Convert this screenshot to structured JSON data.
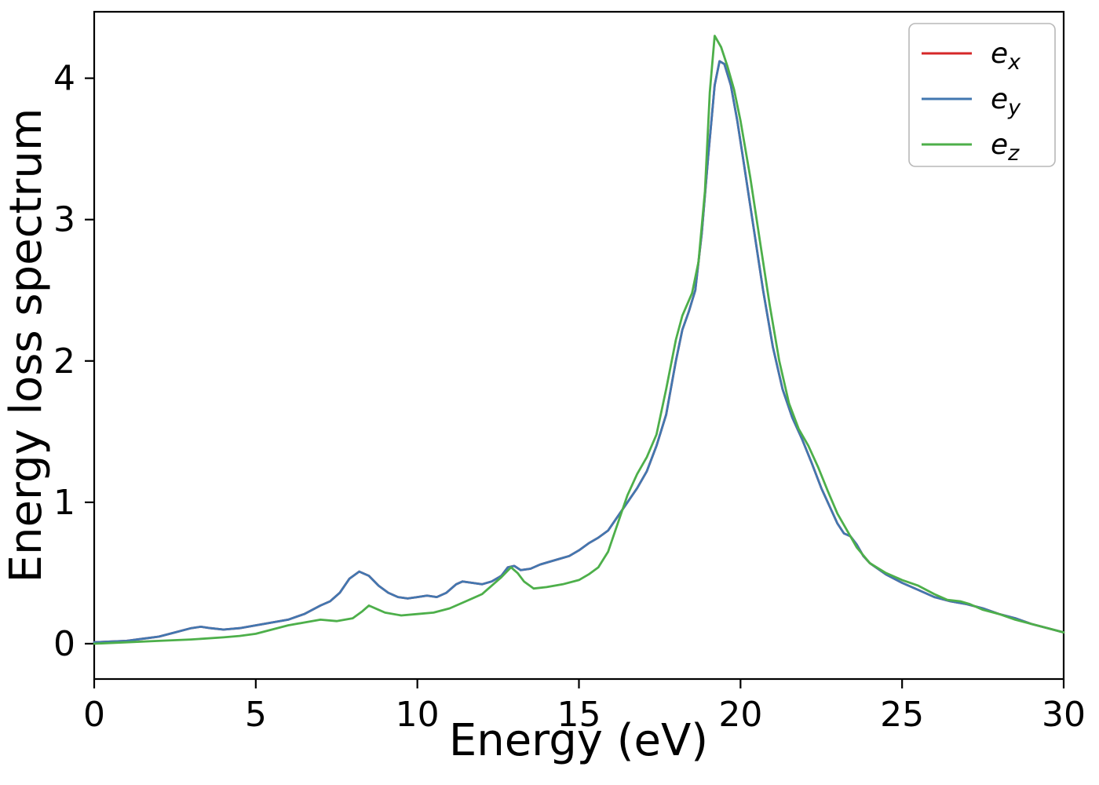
{
  "chart_data": {
    "type": "line",
    "title": "",
    "xlabel": "Energy (eV)",
    "ylabel": "Energy loss spectrum",
    "xlim": [
      0,
      30
    ],
    "ylim": [
      -0.25,
      4.47
    ],
    "xticks": [
      0,
      5,
      10,
      15,
      20,
      25,
      30
    ],
    "yticks": [
      0,
      1,
      2,
      3,
      4
    ],
    "grid": false,
    "legend_position": "upper right",
    "legend_border_color": "#b8b8b8",
    "background_color": "#ffffff",
    "axis_color": "#000000",
    "series": [
      {
        "name_base": "e",
        "name_sub": "x",
        "color": "#d62728",
        "note": "hidden beneath e_y (identical values)",
        "points": [
          [
            0,
            0.01
          ],
          [
            0.5,
            0.015
          ],
          [
            1,
            0.02
          ],
          [
            1.5,
            0.035
          ],
          [
            2,
            0.05
          ],
          [
            2.5,
            0.08
          ],
          [
            3,
            0.11
          ],
          [
            3.3,
            0.12
          ],
          [
            3.6,
            0.11
          ],
          [
            4,
            0.1
          ],
          [
            4.5,
            0.11
          ],
          [
            5,
            0.13
          ],
          [
            5.5,
            0.15
          ],
          [
            6,
            0.17
          ],
          [
            6.5,
            0.21
          ],
          [
            7,
            0.27
          ],
          [
            7.3,
            0.3
          ],
          [
            7.6,
            0.36
          ],
          [
            7.9,
            0.46
          ],
          [
            8.2,
            0.51
          ],
          [
            8.5,
            0.48
          ],
          [
            8.8,
            0.41
          ],
          [
            9.1,
            0.36
          ],
          [
            9.4,
            0.33
          ],
          [
            9.7,
            0.32
          ],
          [
            10,
            0.33
          ],
          [
            10.3,
            0.34
          ],
          [
            10.6,
            0.33
          ],
          [
            10.9,
            0.36
          ],
          [
            11.2,
            0.42
          ],
          [
            11.4,
            0.44
          ],
          [
            11.7,
            0.43
          ],
          [
            12,
            0.42
          ],
          [
            12.3,
            0.44
          ],
          [
            12.6,
            0.48
          ],
          [
            12.8,
            0.54
          ],
          [
            13,
            0.55
          ],
          [
            13.2,
            0.52
          ],
          [
            13.5,
            0.53
          ],
          [
            13.8,
            0.56
          ],
          [
            14.1,
            0.58
          ],
          [
            14.4,
            0.6
          ],
          [
            14.7,
            0.62
          ],
          [
            15,
            0.66
          ],
          [
            15.3,
            0.71
          ],
          [
            15.6,
            0.75
          ],
          [
            15.9,
            0.8
          ],
          [
            16.2,
            0.9
          ],
          [
            16.5,
            1.0
          ],
          [
            16.8,
            1.1
          ],
          [
            17.1,
            1.22
          ],
          [
            17.4,
            1.4
          ],
          [
            17.7,
            1.62
          ],
          [
            18,
            2.0
          ],
          [
            18.2,
            2.22
          ],
          [
            18.4,
            2.35
          ],
          [
            18.6,
            2.5
          ],
          [
            18.8,
            2.9
          ],
          [
            19,
            3.45
          ],
          [
            19.2,
            3.95
          ],
          [
            19.35,
            4.12
          ],
          [
            19.5,
            4.1
          ],
          [
            19.7,
            3.95
          ],
          [
            19.9,
            3.7
          ],
          [
            20.1,
            3.4
          ],
          [
            20.4,
            2.95
          ],
          [
            20.7,
            2.5
          ],
          [
            21,
            2.1
          ],
          [
            21.3,
            1.8
          ],
          [
            21.6,
            1.6
          ],
          [
            21.9,
            1.45
          ],
          [
            22.2,
            1.28
          ],
          [
            22.5,
            1.1
          ],
          [
            22.8,
            0.95
          ],
          [
            23,
            0.85
          ],
          [
            23.2,
            0.78
          ],
          [
            23.4,
            0.76
          ],
          [
            23.6,
            0.7
          ],
          [
            23.8,
            0.62
          ],
          [
            24,
            0.57
          ],
          [
            24.5,
            0.49
          ],
          [
            25,
            0.43
          ],
          [
            25.5,
            0.38
          ],
          [
            26,
            0.33
          ],
          [
            26.5,
            0.3
          ],
          [
            27,
            0.28
          ],
          [
            27.5,
            0.25
          ],
          [
            28,
            0.21
          ],
          [
            28.5,
            0.18
          ],
          [
            29,
            0.14
          ],
          [
            29.5,
            0.11
          ],
          [
            30,
            0.08
          ]
        ]
      },
      {
        "name_base": "e",
        "name_sub": "y",
        "color": "#4277b0",
        "points": [
          [
            0,
            0.01
          ],
          [
            0.5,
            0.015
          ],
          [
            1,
            0.02
          ],
          [
            1.5,
            0.035
          ],
          [
            2,
            0.05
          ],
          [
            2.5,
            0.08
          ],
          [
            3,
            0.11
          ],
          [
            3.3,
            0.12
          ],
          [
            3.6,
            0.11
          ],
          [
            4,
            0.1
          ],
          [
            4.5,
            0.11
          ],
          [
            5,
            0.13
          ],
          [
            5.5,
            0.15
          ],
          [
            6,
            0.17
          ],
          [
            6.5,
            0.21
          ],
          [
            7,
            0.27
          ],
          [
            7.3,
            0.3
          ],
          [
            7.6,
            0.36
          ],
          [
            7.9,
            0.46
          ],
          [
            8.2,
            0.51
          ],
          [
            8.5,
            0.48
          ],
          [
            8.8,
            0.41
          ],
          [
            9.1,
            0.36
          ],
          [
            9.4,
            0.33
          ],
          [
            9.7,
            0.32
          ],
          [
            10,
            0.33
          ],
          [
            10.3,
            0.34
          ],
          [
            10.6,
            0.33
          ],
          [
            10.9,
            0.36
          ],
          [
            11.2,
            0.42
          ],
          [
            11.4,
            0.44
          ],
          [
            11.7,
            0.43
          ],
          [
            12,
            0.42
          ],
          [
            12.3,
            0.44
          ],
          [
            12.6,
            0.48
          ],
          [
            12.8,
            0.54
          ],
          [
            13,
            0.55
          ],
          [
            13.2,
            0.52
          ],
          [
            13.5,
            0.53
          ],
          [
            13.8,
            0.56
          ],
          [
            14.1,
            0.58
          ],
          [
            14.4,
            0.6
          ],
          [
            14.7,
            0.62
          ],
          [
            15,
            0.66
          ],
          [
            15.3,
            0.71
          ],
          [
            15.6,
            0.75
          ],
          [
            15.9,
            0.8
          ],
          [
            16.2,
            0.9
          ],
          [
            16.5,
            1.0
          ],
          [
            16.8,
            1.1
          ],
          [
            17.1,
            1.22
          ],
          [
            17.4,
            1.4
          ],
          [
            17.7,
            1.62
          ],
          [
            18,
            2.0
          ],
          [
            18.2,
            2.22
          ],
          [
            18.4,
            2.35
          ],
          [
            18.6,
            2.5
          ],
          [
            18.8,
            2.9
          ],
          [
            19,
            3.45
          ],
          [
            19.2,
            3.95
          ],
          [
            19.35,
            4.12
          ],
          [
            19.5,
            4.1
          ],
          [
            19.7,
            3.95
          ],
          [
            19.9,
            3.7
          ],
          [
            20.1,
            3.4
          ],
          [
            20.4,
            2.95
          ],
          [
            20.7,
            2.5
          ],
          [
            21,
            2.1
          ],
          [
            21.3,
            1.8
          ],
          [
            21.6,
            1.6
          ],
          [
            21.9,
            1.45
          ],
          [
            22.2,
            1.28
          ],
          [
            22.5,
            1.1
          ],
          [
            22.8,
            0.95
          ],
          [
            23,
            0.85
          ],
          [
            23.2,
            0.78
          ],
          [
            23.4,
            0.76
          ],
          [
            23.6,
            0.7
          ],
          [
            23.8,
            0.62
          ],
          [
            24,
            0.57
          ],
          [
            24.5,
            0.49
          ],
          [
            25,
            0.43
          ],
          [
            25.5,
            0.38
          ],
          [
            26,
            0.33
          ],
          [
            26.5,
            0.3
          ],
          [
            27,
            0.28
          ],
          [
            27.5,
            0.25
          ],
          [
            28,
            0.21
          ],
          [
            28.5,
            0.18
          ],
          [
            29,
            0.14
          ],
          [
            29.5,
            0.11
          ],
          [
            30,
            0.08
          ]
        ]
      },
      {
        "name_base": "e",
        "name_sub": "z",
        "color": "#4daf4a",
        "points": [
          [
            0,
            0.0
          ],
          [
            1,
            0.01
          ],
          [
            2,
            0.02
          ],
          [
            3,
            0.03
          ],
          [
            4,
            0.045
          ],
          [
            4.5,
            0.055
          ],
          [
            5,
            0.07
          ],
          [
            5.5,
            0.1
          ],
          [
            6,
            0.13
          ],
          [
            6.5,
            0.15
          ],
          [
            7,
            0.17
          ],
          [
            7.5,
            0.16
          ],
          [
            8,
            0.18
          ],
          [
            8.3,
            0.23
          ],
          [
            8.5,
            0.27
          ],
          [
            8.8,
            0.24
          ],
          [
            9,
            0.22
          ],
          [
            9.5,
            0.2
          ],
          [
            10,
            0.21
          ],
          [
            10.5,
            0.22
          ],
          [
            11,
            0.25
          ],
          [
            11.5,
            0.3
          ],
          [
            12,
            0.35
          ],
          [
            12.3,
            0.41
          ],
          [
            12.6,
            0.47
          ],
          [
            12.9,
            0.54
          ],
          [
            13.1,
            0.5
          ],
          [
            13.3,
            0.44
          ],
          [
            13.6,
            0.39
          ],
          [
            14,
            0.4
          ],
          [
            14.5,
            0.42
          ],
          [
            15,
            0.45
          ],
          [
            15.3,
            0.49
          ],
          [
            15.6,
            0.54
          ],
          [
            15.9,
            0.65
          ],
          [
            16.2,
            0.85
          ],
          [
            16.5,
            1.05
          ],
          [
            16.8,
            1.2
          ],
          [
            17.1,
            1.32
          ],
          [
            17.4,
            1.48
          ],
          [
            17.7,
            1.8
          ],
          [
            18,
            2.15
          ],
          [
            18.2,
            2.32
          ],
          [
            18.5,
            2.48
          ],
          [
            18.7,
            2.7
          ],
          [
            18.9,
            3.2
          ],
          [
            19.05,
            3.9
          ],
          [
            19.2,
            4.3
          ],
          [
            19.4,
            4.22
          ],
          [
            19.6,
            4.08
          ],
          [
            19.8,
            3.92
          ],
          [
            20,
            3.7
          ],
          [
            20.3,
            3.3
          ],
          [
            20.6,
            2.85
          ],
          [
            20.9,
            2.4
          ],
          [
            21.2,
            2.0
          ],
          [
            21.5,
            1.7
          ],
          [
            21.8,
            1.52
          ],
          [
            22.1,
            1.4
          ],
          [
            22.4,
            1.25
          ],
          [
            22.7,
            1.08
          ],
          [
            23,
            0.92
          ],
          [
            23.3,
            0.8
          ],
          [
            23.6,
            0.68
          ],
          [
            24,
            0.57
          ],
          [
            24.5,
            0.5
          ],
          [
            25,
            0.45
          ],
          [
            25.5,
            0.41
          ],
          [
            26,
            0.35
          ],
          [
            26.4,
            0.31
          ],
          [
            26.8,
            0.3
          ],
          [
            27.1,
            0.28
          ],
          [
            27.5,
            0.24
          ],
          [
            28,
            0.21
          ],
          [
            28.5,
            0.17
          ],
          [
            29,
            0.14
          ],
          [
            29.5,
            0.11
          ],
          [
            30,
            0.08
          ]
        ]
      }
    ]
  }
}
